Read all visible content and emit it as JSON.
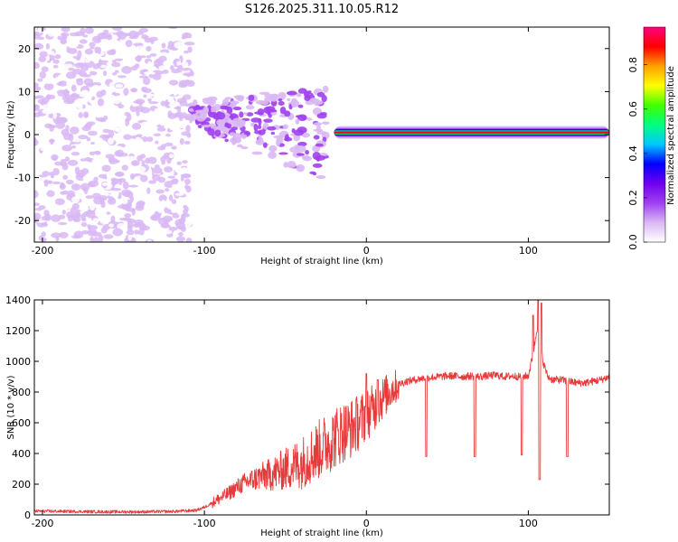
{
  "chart_data": [
    {
      "type": "heatmap",
      "title": "S126.2025.311.10.05.R12",
      "xlabel": "Height of straight line (km)",
      "ylabel": "Frequency (Hz)",
      "xlim": [
        -205,
        150
      ],
      "ylim": [
        -25,
        25
      ],
      "xticks": [
        -200,
        -100,
        0,
        100
      ],
      "yticks": [
        -20,
        -10,
        0,
        10,
        20
      ],
      "colorbar": {
        "label": "Normalized spectral amplitude",
        "range": [
          0.0,
          0.97
        ],
        "ticks": [
          0.0,
          0.2,
          0.4,
          0.6,
          0.8
        ],
        "tick_labels": [
          "0.0",
          "0.2",
          "0.4",
          "0.6",
          "0.8"
        ],
        "colors": [
          "#ffffff",
          "#d9b8f5",
          "#a040f0",
          "#7000f0",
          "#0000ff",
          "#00c8ff",
          "#00ff80",
          "#40ff00",
          "#ffff00",
          "#ffa000",
          "#ff0000",
          "#ff0080"
        ]
      },
      "features": [
        {
          "name": "noise region",
          "x_range": [
            -205,
            -108
          ],
          "y_range": [
            -25,
            25
          ],
          "amplitude": 0.08
        },
        {
          "name": "scatter lobes",
          "x_range": [
            -108,
            -25
          ],
          "y_range": [
            -20,
            20
          ],
          "amplitude": 0.2
        },
        {
          "name": "carrier line",
          "x_range": [
            -20,
            150
          ],
          "frequency": 0.5,
          "amplitude": 0.85
        }
      ]
    },
    {
      "type": "line",
      "xlabel": "Height of straight line (km)",
      "ylabel": "SNR (10 * v/v)",
      "xlim": [
        -205,
        150
      ],
      "ylim": [
        0,
        1400
      ],
      "xticks": [
        -200,
        -100,
        0,
        100
      ],
      "yticks": [
        0,
        200,
        400,
        600,
        800,
        1000,
        1200,
        1400
      ],
      "color": "#e83a3a",
      "series": [
        {
          "name": "SNR",
          "x": [
            -205,
            -180,
            -160,
            -140,
            -120,
            -105,
            -100,
            -95,
            -90,
            -85,
            -80,
            -75,
            -70,
            -65,
            -60,
            -55,
            -50,
            -45,
            -40,
            -35,
            -30,
            -25,
            -20,
            -15,
            -10,
            -5,
            0,
            5,
            10,
            15,
            20,
            25,
            30,
            35,
            40,
            45,
            50,
            55,
            60,
            65,
            70,
            75,
            80,
            85,
            90,
            95,
            100,
            103,
            106,
            109,
            112,
            115,
            120,
            125,
            130,
            135,
            140,
            145,
            150
          ],
          "y": [
            25,
            22,
            20,
            20,
            22,
            30,
            50,
            80,
            110,
            140,
            180,
            210,
            230,
            250,
            260,
            280,
            300,
            320,
            340,
            380,
            420,
            460,
            500,
            540,
            560,
            600,
            650,
            700,
            760,
            810,
            850,
            870,
            880,
            890,
            895,
            900,
            905,
            905,
            900,
            905,
            900,
            905,
            910,
            900,
            905,
            900,
            905,
            1050,
            1250,
            1000,
            900,
            880,
            880,
            870,
            860,
            860,
            870,
            880,
            900
          ]
        }
      ],
      "dips": [
        {
          "x": 37,
          "y": 380
        },
        {
          "x": 67,
          "y": 380
        },
        {
          "x": 96,
          "y": 390
        },
        {
          "x": 107,
          "y": 230
        },
        {
          "x": 124,
          "y": 380
        }
      ],
      "spikes": [
        {
          "x": 0,
          "y": 920
        },
        {
          "x": 7,
          "y": 880
        },
        {
          "x": 103,
          "y": 1300
        },
        {
          "x": 106,
          "y": 1400
        },
        {
          "x": 108,
          "y": 1380
        }
      ]
    }
  ]
}
